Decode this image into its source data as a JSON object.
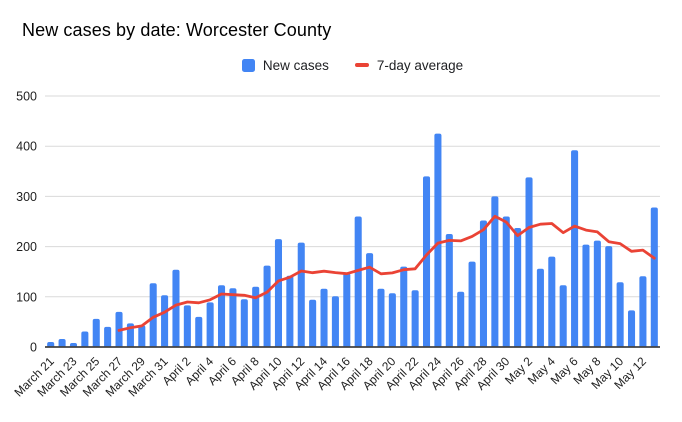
{
  "chart_data": {
    "type": "bar",
    "title": "New cases by date: Worcester County",
    "categories": [
      "March 21",
      "March 22",
      "March 23",
      "March 24",
      "March 25",
      "March 26",
      "March 27",
      "March 28",
      "March 29",
      "March 30",
      "March 31",
      "April 1",
      "April 2",
      "April 3",
      "April 4",
      "April 5",
      "April 6",
      "April 7",
      "April 8",
      "April 9",
      "April 10",
      "April 11",
      "April 12",
      "April 13",
      "April 14",
      "April 15",
      "April 16",
      "April 17",
      "April 18",
      "April 19",
      "April 20",
      "April 21",
      "April 22",
      "April 23",
      "April 24",
      "April 25",
      "April 26",
      "April 27",
      "April 28",
      "April 29",
      "April 30",
      "May 1",
      "May 2",
      "May 3",
      "May 4",
      "May 5",
      "May 6",
      "May 7",
      "May 8",
      "May 9",
      "May 10",
      "May 11",
      "May 12",
      "May 13"
    ],
    "series": [
      {
        "name": "New cases",
        "type": "bar",
        "color": "#4285f4",
        "values": [
          10,
          16,
          8,
          31,
          56,
          40,
          70,
          47,
          43,
          127,
          103,
          154,
          83,
          60,
          89,
          123,
          117,
          95,
          120,
          162,
          215,
          142,
          208,
          94,
          116,
          101,
          147,
          260,
          187,
          116,
          107,
          160,
          113,
          340,
          425,
          225,
          110,
          170,
          252,
          300,
          260,
          237,
          338,
          156,
          180,
          123,
          392,
          204,
          212,
          201,
          129,
          73,
          141,
          278
        ]
      },
      {
        "name": "7-day average",
        "type": "line",
        "color": "#ea4335",
        "values": [
          null,
          null,
          null,
          null,
          null,
          null,
          33,
          38.3,
          42.1,
          59.1,
          69.4,
          83.4,
          89.6,
          88.1,
          94.1,
          105.6,
          104.1,
          103,
          98.1,
          109.4,
          131.6,
          139.1,
          151.3,
          148,
          151,
          148.3,
          146.1,
          152.6,
          159,
          145.9,
          147.7,
          154,
          155.7,
          183.3,
          206.9,
          212.3,
          211.4,
          220.4,
          233.6,
          260.3,
          248.9,
          222,
          238.1,
          244.7,
          246.1,
          227.7,
          240.9,
          232.9,
          229.3,
          209.7,
          205.9,
          190.6,
          193.1,
          176.9
        ]
      }
    ],
    "xlabel": "",
    "ylabel": "",
    "ylim": [
      0,
      500
    ],
    "y_ticks": [
      0,
      100,
      200,
      300,
      400,
      500
    ],
    "x_tick_every": 2,
    "x_tick_labels": [
      "March 21",
      "March 23",
      "March 25",
      "March 27",
      "March 29",
      "March 31",
      "April 2",
      "April 4",
      "April 6",
      "April 8",
      "April 10",
      "April 12",
      "April 14",
      "April 16",
      "April 18",
      "April 20",
      "April 22",
      "April 24",
      "April 26",
      "April 28",
      "April 30",
      "May 2",
      "May 4",
      "May 6",
      "May 8",
      "May 10",
      "May 12"
    ],
    "legend_position": "top",
    "grid": "horizontal"
  },
  "style": {
    "bar_color": "#4285f4",
    "line_color": "#ea4335",
    "gridline_color": "#dadada",
    "axis_line_color": "#424242",
    "tick_label_color": "#1f1f1f",
    "background": "#ffffff"
  }
}
